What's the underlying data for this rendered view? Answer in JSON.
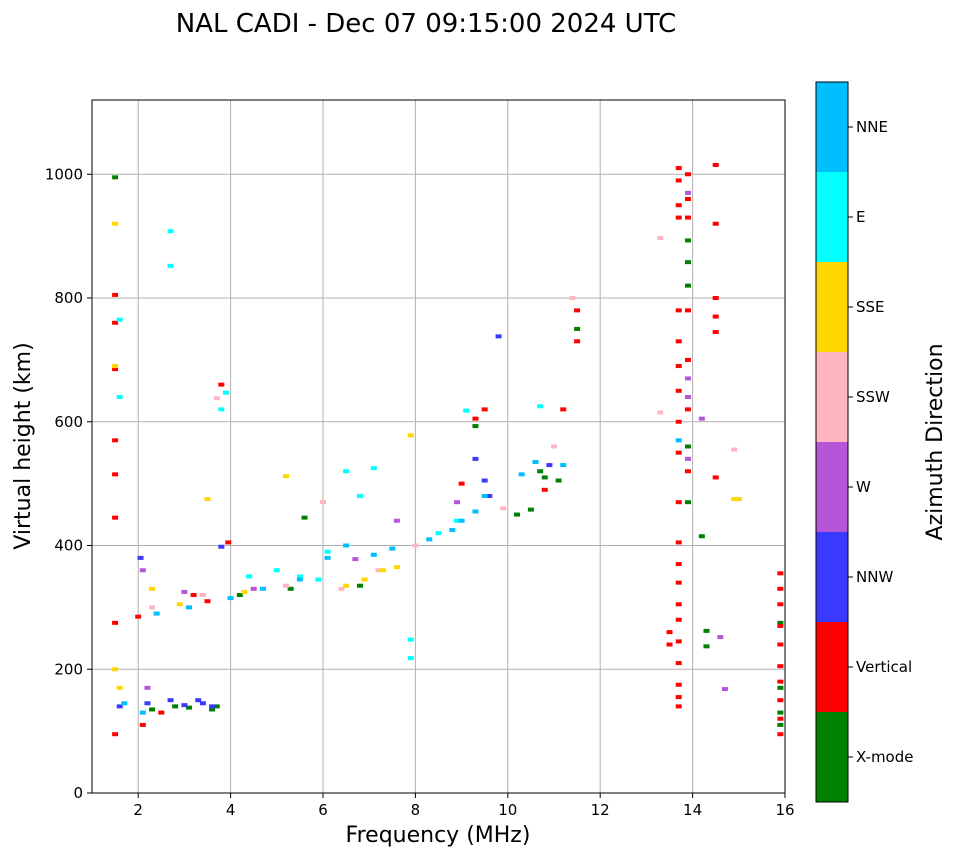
{
  "chart_data": {
    "type": "scatter",
    "title": "NAL CADI - Dec 07 09:15:00 2024 UTC",
    "xlabel": "Frequency (MHz)",
    "ylabel": "Virtual height (km)",
    "xlim": [
      1,
      16
    ],
    "ylim": [
      0,
      1120
    ],
    "xticks": [
      2,
      4,
      6,
      8,
      10,
      12,
      14,
      16
    ],
    "yticks": [
      0,
      200,
      400,
      600,
      800,
      1000
    ],
    "grid": true,
    "colorbar": {
      "label": "Azimuth Direction",
      "categories": [
        {
          "name": "X-mode",
          "color": "#008000"
        },
        {
          "name": "Vertical",
          "color": "#ff0000"
        },
        {
          "name": "NNW",
          "color": "#3a3aff"
        },
        {
          "name": "W",
          "color": "#b655d8"
        },
        {
          "name": "SSW",
          "color": "#ffb6c1"
        },
        {
          "name": "SSE",
          "color": "#ffd700"
        },
        {
          "name": "E",
          "color": "#00ffff"
        },
        {
          "name": "NNE",
          "color": "#00bfff"
        }
      ]
    },
    "series": [
      {
        "name": "X-mode",
        "points": [
          [
            1.5,
            995
          ],
          [
            2.3,
            135
          ],
          [
            2.8,
            140
          ],
          [
            3.1,
            138
          ],
          [
            3.6,
            135
          ],
          [
            3.7,
            140
          ],
          [
            4.2,
            320
          ],
          [
            5.3,
            330
          ],
          [
            5.6,
            445
          ],
          [
            6.8,
            335
          ],
          [
            9.3,
            593
          ],
          [
            10.2,
            450
          ],
          [
            10.5,
            458
          ],
          [
            10.7,
            520
          ],
          [
            10.8,
            510
          ],
          [
            11.1,
            505
          ],
          [
            11.5,
            750
          ],
          [
            13.9,
            893
          ],
          [
            13.9,
            858
          ],
          [
            13.9,
            820
          ],
          [
            13.9,
            560
          ],
          [
            13.9,
            470
          ],
          [
            14.2,
            415
          ],
          [
            14.3,
            262
          ],
          [
            14.3,
            237
          ],
          [
            15.9,
            170
          ],
          [
            15.9,
            130
          ],
          [
            15.9,
            110
          ],
          [
            15.9,
            275
          ]
        ]
      },
      {
        "name": "Vertical",
        "points": [
          [
            1.5,
            95
          ],
          [
            1.5,
            275
          ],
          [
            1.5,
            445
          ],
          [
            1.5,
            515
          ],
          [
            1.5,
            570
          ],
          [
            1.5,
            685
          ],
          [
            1.5,
            760
          ],
          [
            1.5,
            805
          ],
          [
            2.0,
            285
          ],
          [
            2.1,
            110
          ],
          [
            2.5,
            130
          ],
          [
            3.2,
            320
          ],
          [
            3.5,
            310
          ],
          [
            3.8,
            660
          ],
          [
            3.95,
            405
          ],
          [
            9.3,
            605
          ],
          [
            9.5,
            620
          ],
          [
            9.0,
            500
          ],
          [
            10.8,
            490
          ],
          [
            11.2,
            620
          ],
          [
            11.5,
            780
          ],
          [
            11.5,
            730
          ],
          [
            13.5,
            260
          ],
          [
            13.5,
            240
          ],
          [
            13.7,
            1010
          ],
          [
            13.7,
            990
          ],
          [
            13.7,
            950
          ],
          [
            13.7,
            930
          ],
          [
            13.7,
            780
          ],
          [
            13.7,
            730
          ],
          [
            13.7,
            690
          ],
          [
            13.7,
            650
          ],
          [
            13.7,
            600
          ],
          [
            13.7,
            550
          ],
          [
            13.7,
            470
          ],
          [
            13.7,
            405
          ],
          [
            13.7,
            370
          ],
          [
            13.7,
            340
          ],
          [
            13.7,
            305
          ],
          [
            13.7,
            280
          ],
          [
            13.7,
            245
          ],
          [
            13.7,
            210
          ],
          [
            13.7,
            175
          ],
          [
            13.7,
            155
          ],
          [
            13.7,
            140
          ],
          [
            13.9,
            1000
          ],
          [
            13.9,
            960
          ],
          [
            13.9,
            930
          ],
          [
            13.9,
            780
          ],
          [
            13.9,
            700
          ],
          [
            13.9,
            620
          ],
          [
            13.9,
            520
          ],
          [
            14.5,
            1015
          ],
          [
            14.5,
            920
          ],
          [
            14.5,
            800
          ],
          [
            14.5,
            770
          ],
          [
            14.5,
            745
          ],
          [
            14.5,
            510
          ],
          [
            15.9,
            355
          ],
          [
            15.9,
            330
          ],
          [
            15.9,
            305
          ],
          [
            15.9,
            270
          ],
          [
            15.9,
            240
          ],
          [
            15.9,
            205
          ],
          [
            15.9,
            180
          ],
          [
            15.9,
            150
          ],
          [
            15.9,
            120
          ],
          [
            15.9,
            95
          ]
        ]
      },
      {
        "name": "NNW",
        "points": [
          [
            1.6,
            140
          ],
          [
            2.05,
            380
          ],
          [
            2.2,
            145
          ],
          [
            2.7,
            150
          ],
          [
            3.0,
            142
          ],
          [
            3.3,
            150
          ],
          [
            3.4,
            145
          ],
          [
            3.6,
            140
          ],
          [
            3.8,
            398
          ],
          [
            9.8,
            738
          ],
          [
            9.3,
            540
          ],
          [
            9.5,
            505
          ],
          [
            9.6,
            480
          ],
          [
            10.9,
            530
          ]
        ]
      },
      {
        "name": "W",
        "points": [
          [
            2.1,
            360
          ],
          [
            2.2,
            170
          ],
          [
            3.0,
            325
          ],
          [
            4.5,
            330
          ],
          [
            6.7,
            378
          ],
          [
            7.6,
            440
          ],
          [
            8.9,
            470
          ],
          [
            13.9,
            670
          ],
          [
            13.9,
            640
          ],
          [
            13.9,
            540
          ],
          [
            13.9,
            970
          ],
          [
            14.2,
            605
          ],
          [
            14.6,
            252
          ],
          [
            14.7,
            168
          ]
        ]
      },
      {
        "name": "SSW",
        "points": [
          [
            2.3,
            300
          ],
          [
            3.4,
            320
          ],
          [
            3.7,
            638
          ],
          [
            5.2,
            335
          ],
          [
            6.0,
            470
          ],
          [
            6.4,
            330
          ],
          [
            7.2,
            360
          ],
          [
            8.0,
            400
          ],
          [
            9.9,
            460
          ],
          [
            11.0,
            560
          ],
          [
            11.4,
            800
          ],
          [
            13.3,
            897
          ],
          [
            13.3,
            615
          ],
          [
            14.9,
            555
          ]
        ]
      },
      {
        "name": "SSE",
        "points": [
          [
            1.5,
            200
          ],
          [
            1.5,
            690
          ],
          [
            1.5,
            920
          ],
          [
            1.6,
            170
          ],
          [
            2.3,
            330
          ],
          [
            2.9,
            305
          ],
          [
            3.5,
            475
          ],
          [
            4.3,
            325
          ],
          [
            5.2,
            512
          ],
          [
            6.5,
            335
          ],
          [
            6.9,
            345
          ],
          [
            7.3,
            360
          ],
          [
            7.6,
            365
          ],
          [
            7.9,
            578
          ],
          [
            14.9,
            475
          ],
          [
            15.0,
            475
          ]
        ]
      },
      {
        "name": "E",
        "points": [
          [
            1.6,
            640
          ],
          [
            1.6,
            765
          ],
          [
            2.7,
            908
          ],
          [
            2.7,
            852
          ],
          [
            3.8,
            620
          ],
          [
            3.9,
            647
          ],
          [
            4.4,
            350
          ],
          [
            5.0,
            360
          ],
          [
            5.5,
            350
          ],
          [
            5.9,
            345
          ],
          [
            6.1,
            390
          ],
          [
            6.5,
            520
          ],
          [
            6.8,
            480
          ],
          [
            7.1,
            525
          ],
          [
            7.9,
            248
          ],
          [
            7.9,
            218
          ],
          [
            8.5,
            420
          ],
          [
            8.9,
            440
          ],
          [
            9.1,
            618
          ],
          [
            10.7,
            625
          ]
        ]
      },
      {
        "name": "NNE",
        "points": [
          [
            1.7,
            145
          ],
          [
            2.1,
            130
          ],
          [
            2.4,
            290
          ],
          [
            3.1,
            300
          ],
          [
            4.0,
            315
          ],
          [
            4.7,
            330
          ],
          [
            5.5,
            345
          ],
          [
            6.1,
            380
          ],
          [
            6.5,
            400
          ],
          [
            7.1,
            385
          ],
          [
            7.5,
            395
          ],
          [
            8.3,
            410
          ],
          [
            8.8,
            425
          ],
          [
            9.0,
            440
          ],
          [
            9.3,
            455
          ],
          [
            9.5,
            480
          ],
          [
            10.3,
            515
          ],
          [
            10.6,
            535
          ],
          [
            11.2,
            530
          ],
          [
            13.7,
            570
          ]
        ]
      }
    ]
  }
}
